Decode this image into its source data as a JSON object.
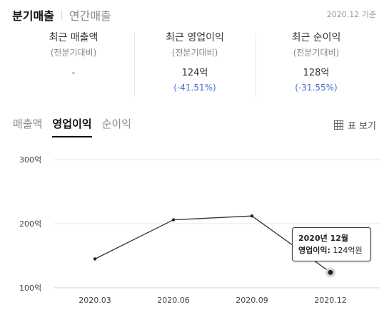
{
  "period_tabs": {
    "quarterly": "분기매출",
    "annual": "연간매출"
  },
  "basis_note": "2020.12 기준",
  "summary": [
    {
      "title": "최근 매출액",
      "sub": "(전분기대비)",
      "value": "-",
      "change": ""
    },
    {
      "title": "최근 영업이익",
      "sub": "(전분기대비)",
      "value": "124억",
      "change": "(-41.51%)"
    },
    {
      "title": "최근 순이익",
      "sub": "(전분기대비)",
      "value": "128억",
      "change": "(-31.55%)"
    }
  ],
  "metric_tabs": [
    "매출액",
    "영업이익",
    "순이익"
  ],
  "table_view_label": "표 보기",
  "icons": {
    "table_view": "table-grid-icon"
  },
  "colors": {
    "line": "#333333",
    "change_text": "#4a6fc9",
    "active_tab": "#111111",
    "grid": "#e6e6e6"
  },
  "tooltip": {
    "title": "2020년 12월",
    "key": "영업이익:",
    "value": "124억원"
  },
  "chart_data": {
    "type": "line",
    "categories": [
      "2020.03",
      "2020.06",
      "2020.09",
      "2020.12"
    ],
    "series": [
      {
        "values": [
          145,
          206,
          212,
          124
        ]
      }
    ],
    "ylim": [
      100,
      300
    ],
    "yticks": [
      100,
      200,
      300
    ],
    "ytick_labels": [
      "100억",
      "200억",
      "300억"
    ],
    "grid": "horizontal",
    "highlighted_index": 3,
    "title": "",
    "xlabel": "",
    "ylabel": ""
  }
}
